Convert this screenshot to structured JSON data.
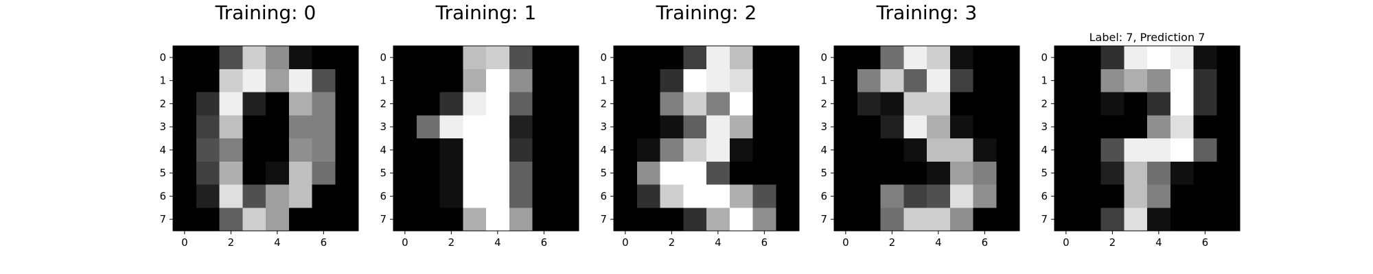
{
  "chart_data": [
    {
      "type": "heatmap",
      "title": "Training: 0",
      "colormap": "gray_r",
      "vmin": 0,
      "vmax": 16,
      "x_ticks": [
        0,
        2,
        4,
        6
      ],
      "y_ticks": [
        0,
        1,
        2,
        3,
        4,
        5,
        6,
        7
      ],
      "values": [
        [
          0,
          0,
          5,
          13,
          9,
          1,
          0,
          0
        ],
        [
          0,
          0,
          13,
          15,
          10,
          15,
          5,
          0
        ],
        [
          0,
          3,
          15,
          2,
          0,
          11,
          8,
          0
        ],
        [
          0,
          4,
          12,
          0,
          0,
          8,
          8,
          0
        ],
        [
          0,
          5,
          8,
          0,
          0,
          9,
          8,
          0
        ],
        [
          0,
          4,
          11,
          0,
          1,
          12,
          7,
          0
        ],
        [
          0,
          2,
          14,
          5,
          10,
          12,
          0,
          0
        ],
        [
          0,
          0,
          6,
          13,
          10,
          0,
          0,
          0
        ]
      ]
    },
    {
      "type": "heatmap",
      "title": "Training: 1",
      "colormap": "gray_r",
      "vmin": 0,
      "vmax": 16,
      "x_ticks": [
        0,
        2,
        4,
        6
      ],
      "y_ticks": [
        0,
        1,
        2,
        3,
        4,
        5,
        6,
        7
      ],
      "values": [
        [
          0,
          0,
          0,
          12,
          13,
          5,
          0,
          0
        ],
        [
          0,
          0,
          0,
          11,
          16,
          9,
          0,
          0
        ],
        [
          0,
          0,
          3,
          15,
          16,
          6,
          0,
          0
        ],
        [
          0,
          7,
          15,
          16,
          16,
          2,
          0,
          0
        ],
        [
          0,
          0,
          1,
          16,
          16,
          3,
          0,
          0
        ],
        [
          0,
          0,
          1,
          16,
          16,
          6,
          0,
          0
        ],
        [
          0,
          0,
          1,
          16,
          16,
          6,
          0,
          0
        ],
        [
          0,
          0,
          0,
          11,
          16,
          10,
          0,
          0
        ]
      ]
    },
    {
      "type": "heatmap",
      "title": "Training: 2",
      "colormap": "gray_r",
      "vmin": 0,
      "vmax": 16,
      "x_ticks": [
        0,
        2,
        4,
        6
      ],
      "y_ticks": [
        0,
        1,
        2,
        3,
        4,
        5,
        6,
        7
      ],
      "values": [
        [
          0,
          0,
          0,
          4,
          15,
          12,
          0,
          0
        ],
        [
          0,
          0,
          3,
          16,
          15,
          14,
          0,
          0
        ],
        [
          0,
          0,
          8,
          13,
          8,
          16,
          0,
          0
        ],
        [
          0,
          0,
          1,
          6,
          15,
          11,
          0,
          0
        ],
        [
          0,
          1,
          8,
          13,
          15,
          1,
          0,
          0
        ],
        [
          0,
          9,
          16,
          16,
          5,
          0,
          0,
          0
        ],
        [
          0,
          3,
          13,
          16,
          16,
          11,
          5,
          0
        ],
        [
          0,
          0,
          0,
          3,
          11,
          16,
          9,
          0
        ]
      ]
    },
    {
      "type": "heatmap",
      "title": "Training: 3",
      "colormap": "gray_r",
      "vmin": 0,
      "vmax": 16,
      "x_ticks": [
        0,
        2,
        4,
        6
      ],
      "y_ticks": [
        0,
        1,
        2,
        3,
        4,
        5,
        6,
        7
      ],
      "values": [
        [
          0,
          0,
          7,
          15,
          13,
          1,
          0,
          0
        ],
        [
          0,
          8,
          13,
          6,
          15,
          4,
          0,
          0
        ],
        [
          0,
          2,
          1,
          13,
          13,
          0,
          0,
          0
        ],
        [
          0,
          0,
          2,
          15,
          11,
          1,
          0,
          0
        ],
        [
          0,
          0,
          0,
          1,
          12,
          12,
          1,
          0
        ],
        [
          0,
          0,
          0,
          0,
          1,
          10,
          8,
          0
        ],
        [
          0,
          0,
          8,
          4,
          5,
          14,
          9,
          0
        ],
        [
          0,
          0,
          7,
          13,
          13,
          9,
          0,
          0
        ]
      ]
    },
    {
      "type": "heatmap",
      "title": "Label: 7, Prediction 7",
      "colormap": "gray_r",
      "vmin": 0,
      "vmax": 16,
      "x_ticks": [
        0,
        2,
        4,
        6
      ],
      "y_ticks": [
        0,
        1,
        2,
        3,
        4,
        5,
        6,
        7
      ],
      "values": [
        [
          0,
          0,
          3,
          15,
          16,
          15,
          1,
          0
        ],
        [
          0,
          0,
          9,
          11,
          9,
          16,
          3,
          0
        ],
        [
          0,
          0,
          1,
          0,
          3,
          16,
          3,
          0
        ],
        [
          0,
          0,
          0,
          0,
          9,
          14,
          0,
          0
        ],
        [
          0,
          0,
          5,
          15,
          15,
          16,
          6,
          0
        ],
        [
          0,
          0,
          2,
          12,
          7,
          1,
          0,
          0
        ],
        [
          0,
          0,
          0,
          12,
          8,
          0,
          0,
          0
        ],
        [
          0,
          0,
          4,
          14,
          1,
          0,
          0,
          0
        ]
      ]
    }
  ]
}
